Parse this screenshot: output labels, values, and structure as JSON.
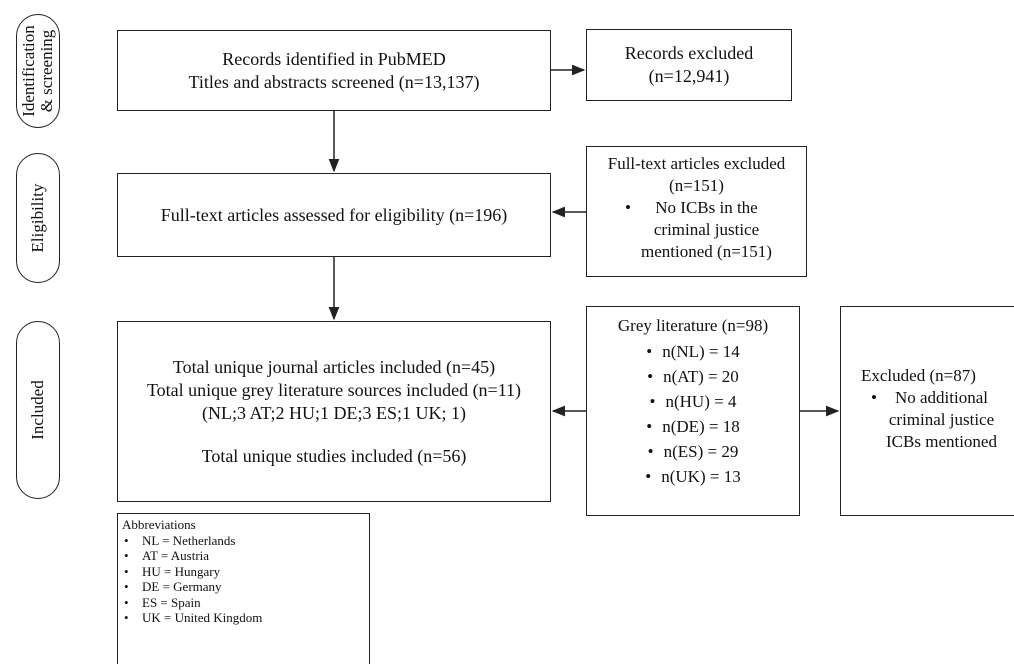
{
  "stages": {
    "identification": [
      "Identification",
      "& screening"
    ],
    "eligibility": "Eligibility",
    "included": "Included"
  },
  "identified": {
    "line1": "Records identified in PubMED",
    "line2": "Titles and abstracts screened (n=13,137)"
  },
  "records_excluded": {
    "line1": "Records excluded",
    "line2": "(n=12,941)"
  },
  "assessed": "Full-text articles assessed for eligibility (n=196)",
  "fulltext_excluded": {
    "title": "Full-text articles excluded",
    "count": "(n=151)",
    "bullet": [
      "No ICBs in the",
      "criminal justice",
      "mentioned (n=151)"
    ]
  },
  "included_box": {
    "journal": "Total unique journal articles included (n=45)",
    "grey": "Total unique grey literature sources included (n=11)",
    "grey_detail": "(NL;3 AT;2 HU;1 DE;3 ES;1 UK; 1)",
    "studies": "Total unique studies included (n=56)"
  },
  "grey_literature": {
    "title": "Grey literature (n=98)",
    "items": [
      "n(NL) = 14",
      "n(AT) = 20",
      "n(HU) = 4",
      "n(DE) = 18",
      "n(ES) = 29",
      "n(UK) = 13"
    ]
  },
  "excluded_87": {
    "title": "Excluded (n=87)",
    "bullet": [
      "No additional",
      "criminal justice",
      "ICBs mentioned"
    ]
  },
  "abbreviations": {
    "title": "Abbreviations",
    "items": [
      "NL = Netherlands",
      "AT = Austria",
      "HU = Hungary",
      "DE = Germany",
      "ES = Spain",
      "UK = United Kingdom"
    ]
  }
}
